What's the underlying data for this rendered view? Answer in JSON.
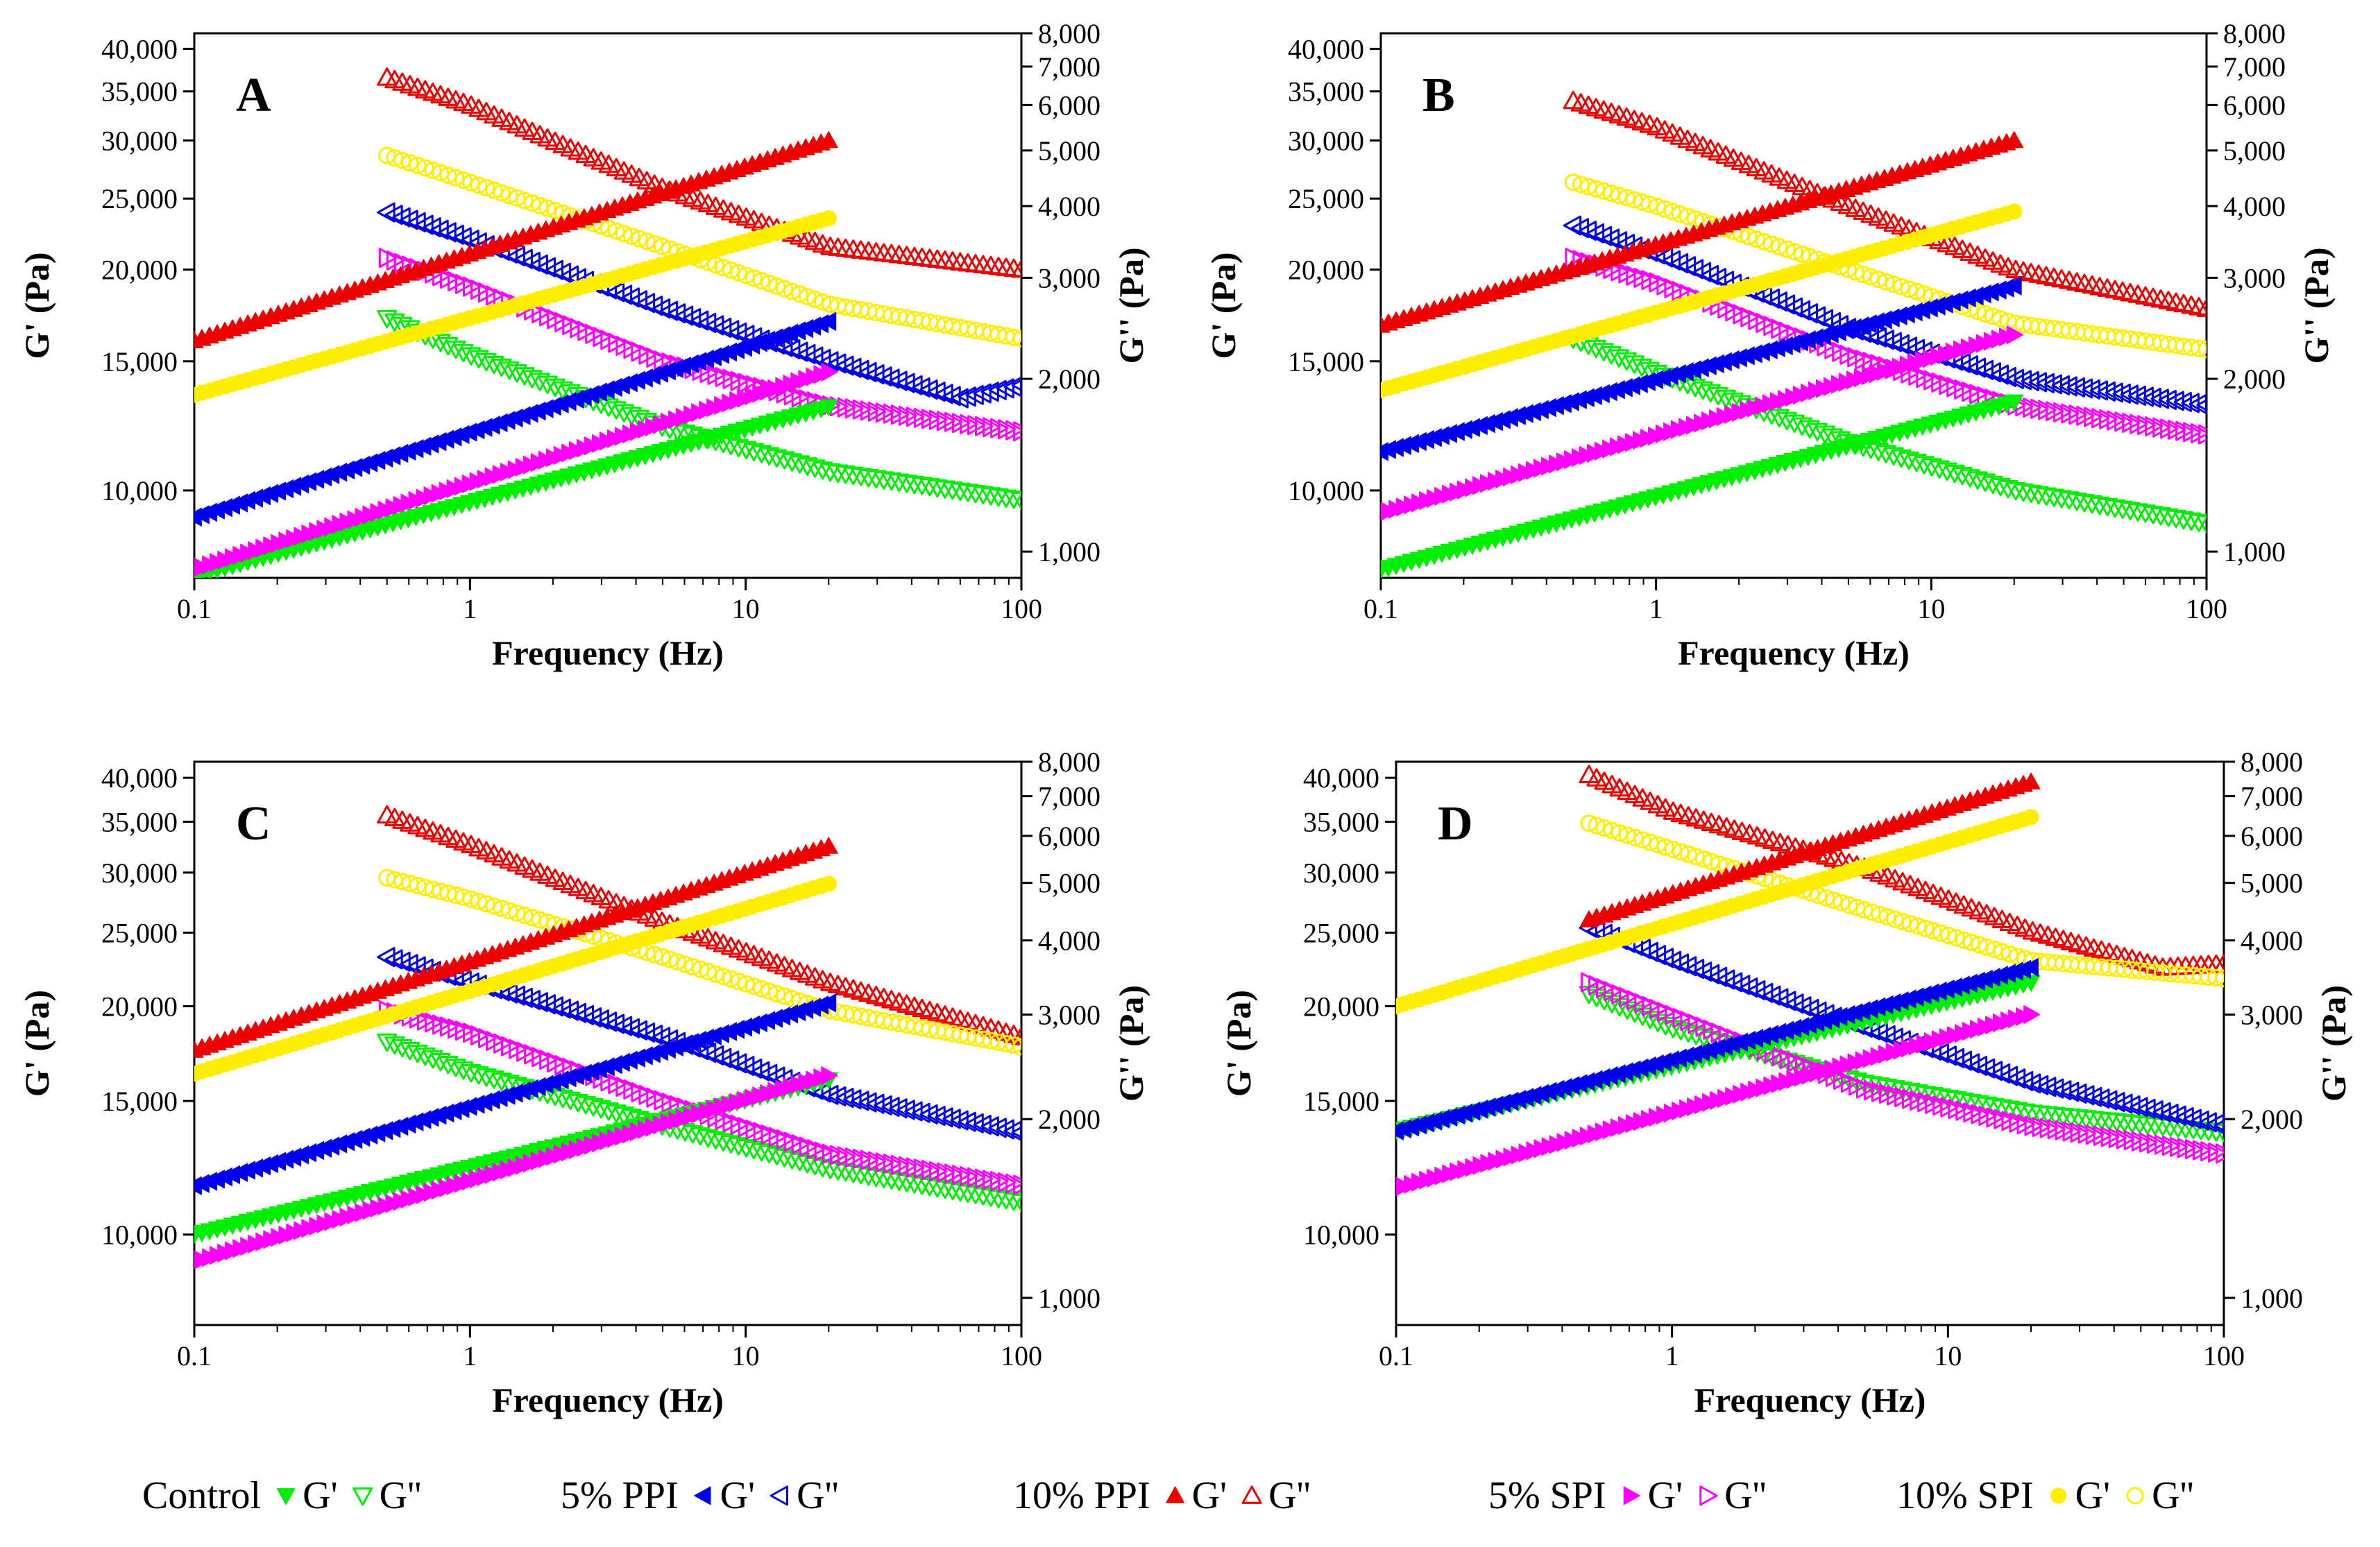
{
  "chart_data": {
    "type": "scatter",
    "x_label": "Frequency (Hz)",
    "y_left_label": "G' (Pa)",
    "y_right_label": "G'' (Pa)",
    "x_scale": "log",
    "x_range": [
      0.1,
      100
    ],
    "x_ticks": [
      {
        "value": 0.1,
        "label": "0.1"
      },
      {
        "value": 1,
        "label": "1"
      },
      {
        "value": 10,
        "label": "10"
      },
      {
        "value": 100,
        "label": "100"
      }
    ],
    "y_left_scale": "log",
    "y_left_range": [
      7600,
      42000
    ],
    "y_left_ticks": [
      {
        "value": 10000,
        "label": "10,000"
      },
      {
        "value": 15000,
        "label": "15,000"
      },
      {
        "value": 20000,
        "label": "20,000"
      },
      {
        "value": 25000,
        "label": "25,000"
      },
      {
        "value": 30000,
        "label": "30,000"
      },
      {
        "value": 35000,
        "label": "35,000"
      },
      {
        "value": 40000,
        "label": "40,000"
      }
    ],
    "y_right_scale": "log",
    "y_right_range": [
      900,
      8000
    ],
    "y_right_ticks": [
      {
        "value": 1000,
        "label": "1,000"
      },
      {
        "value": 2000,
        "label": "2,000"
      },
      {
        "value": 3000,
        "label": "3,000"
      },
      {
        "value": 4000,
        "label": "4,000"
      },
      {
        "value": 5000,
        "label": "5,000"
      },
      {
        "value": 6000,
        "label": "6,000"
      },
      {
        "value": 7000,
        "label": "7,000"
      },
      {
        "value": 8000,
        "label": "8,000"
      }
    ],
    "series_styles": [
      {
        "key": "control",
        "name": "Control",
        "color": "#00ee00",
        "gp_marker": "triangle-down-filled",
        "gpp_marker": "triangle-down-open"
      },
      {
        "key": "ppi5",
        "name": "5% PPI",
        "color": "#0000ee",
        "gp_marker": "triangle-left-filled",
        "gpp_marker": "triangle-left-open"
      },
      {
        "key": "ppi10",
        "name": "10% PPI",
        "color": "#ee0000",
        "gp_marker": "triangle-up-filled",
        "gpp_marker": "triangle-up-open"
      },
      {
        "key": "spi5",
        "name": "5% SPI",
        "color": "#ff00ff",
        "gp_marker": "triangle-right-filled",
        "gpp_marker": "triangle-right-open"
      },
      {
        "key": "spi10",
        "name": "10% SPI",
        "color": "#ffee00",
        "gp_marker": "circle-filled",
        "gpp_marker": "circle-open"
      }
    ],
    "panels": [
      {
        "label": "A",
        "series": [
          {
            "key": "control",
            "gp": {
              "f": [
                0.1,
                20
              ],
              "v": [
                7650,
                13000
              ]
            },
            "gpp": {
              "f": [
                0.5,
                1,
                5,
                20,
                100
              ],
              "v": [
                2550,
                2200,
                1650,
                1380,
                1230
              ]
            }
          },
          {
            "key": "ppi5",
            "gp": {
              "f": [
                0.1,
                20
              ],
              "v": [
                9200,
                17000
              ]
            },
            "gpp": {
              "f": [
                0.5,
                1,
                5,
                20,
                60,
                100
              ],
              "v": [
                3900,
                3500,
                2650,
                2150,
                1850,
                1950
              ]
            }
          },
          {
            "key": "ppi10",
            "gp": {
              "f": [
                0.1,
                20
              ],
              "v": [
                16000,
                30000
              ]
            },
            "gpp": {
              "f": [
                0.5,
                1,
                5,
                20,
                100
              ],
              "v": [
                6700,
                6000,
                4300,
                3400,
                3100
              ]
            }
          },
          {
            "key": "spi5",
            "gp": {
              "f": [
                0.1,
                20
              ],
              "v": [
                7800,
                14500
              ]
            },
            "gpp": {
              "f": [
                0.5,
                1,
                5,
                20,
                100
              ],
              "v": [
                3250,
                2900,
                2150,
                1800,
                1620
              ]
            }
          },
          {
            "key": "spi10",
            "gp": {
              "f": [
                0.1,
                20
              ],
              "v": [
                13500,
                23500
              ]
            },
            "gpp": {
              "f": [
                0.5,
                1,
                5,
                20,
                100
              ],
              "v": [
                4900,
                4400,
                3400,
                2700,
                2350
              ]
            }
          }
        ]
      },
      {
        "label": "B",
        "series": [
          {
            "key": "control",
            "gp": {
              "f": [
                0.1,
                20
              ],
              "v": [
                7800,
                13200
              ]
            },
            "gpp": {
              "f": [
                0.5,
                1,
                5,
                20,
                100
              ],
              "v": [
                2350,
                2050,
                1550,
                1280,
                1120
              ]
            }
          },
          {
            "key": "ppi5",
            "gp": {
              "f": [
                0.1,
                20
              ],
              "v": [
                11300,
                19000
              ]
            },
            "gpp": {
              "f": [
                0.5,
                1,
                5,
                20,
                100
              ],
              "v": [
                3700,
                3300,
                2450,
                2000,
                1800
              ]
            }
          },
          {
            "key": "ppi10",
            "gp": {
              "f": [
                0.1,
                20
              ],
              "v": [
                16800,
                30000
              ]
            },
            "gpp": {
              "f": [
                0.5,
                1,
                5,
                20,
                100
              ],
              "v": [
                6100,
                5500,
                4000,
                3100,
                2650
              ]
            }
          },
          {
            "key": "spi5",
            "gp": {
              "f": [
                0.1,
                20
              ],
              "v": [
                9300,
                16300
              ]
            },
            "gpp": {
              "f": [
                0.5,
                1,
                5,
                20,
                100
              ],
              "v": [
                3250,
                2950,
                2200,
                1800,
                1600
              ]
            }
          },
          {
            "key": "spi10",
            "gp": {
              "f": [
                0.1,
                20
              ],
              "v": [
                13700,
                24000
              ]
            },
            "gpp": {
              "f": [
                0.5,
                1,
                5,
                20,
                100
              ],
              "v": [
                4400,
                4000,
                3100,
                2500,
                2250
              ]
            }
          }
        ]
      },
      {
        "label": "C",
        "series": [
          {
            "key": "control",
            "gp": {
              "f": [
                0.1,
                20
              ],
              "v": [
                10000,
                16000
              ]
            },
            "gpp": {
              "f": [
                0.5,
                1,
                5,
                20,
                100
              ],
              "v": [
                2700,
                2400,
                1950,
                1650,
                1450
              ]
            }
          },
          {
            "key": "ppi5",
            "gp": {
              "f": [
                0.1,
                20
              ],
              "v": [
                11600,
                20200
              ]
            },
            "gpp": {
              "f": [
                0.5,
                1,
                5,
                20,
                100
              ],
              "v": [
                3750,
                3400,
                2750,
                2200,
                1900
              ]
            }
          },
          {
            "key": "ppi10",
            "gp": {
              "f": [
                0.1,
                20
              ],
              "v": [
                17500,
                32500
              ]
            },
            "gpp": {
              "f": [
                0.5,
                1,
                5,
                20,
                100
              ],
              "v": [
                6500,
                5800,
                4300,
                3400,
                2750
              ]
            }
          },
          {
            "key": "spi5",
            "gp": {
              "f": [
                0.1,
                20
              ],
              "v": [
                9200,
                16200
              ]
            },
            "gpp": {
              "f": [
                0.5,
                1,
                5,
                20,
                100
              ],
              "v": [
                3050,
                2800,
                2150,
                1750,
                1550
              ]
            }
          },
          {
            "key": "spi10",
            "gp": {
              "f": [
                0.1,
                20
              ],
              "v": [
                16300,
                29000
              ]
            },
            "gpp": {
              "f": [
                0.5,
                1,
                5,
                20,
                100
              ],
              "v": [
                5100,
                4700,
                3750,
                3050,
                2650
              ]
            }
          }
        ]
      },
      {
        "label": "D",
        "series": [
          {
            "key": "control",
            "gp": {
              "f": [
                0.1,
                20
              ],
              "v": [
                13700,
                21500
              ]
            },
            "gpp": {
              "f": [
                0.5,
                1,
                5,
                20,
                100
              ],
              "v": [
                3250,
                2850,
                2300,
                2050,
                1900
              ]
            }
          },
          {
            "key": "ppi5",
            "gp": {
              "f": [
                0.1,
                20
              ],
              "v": [
                13700,
                22500
              ]
            },
            "gpp": {
              "f": [
                0.5,
                1,
                5,
                20,
                100
              ],
              "v": [
                4200,
                3700,
                2850,
                2300,
                1950
              ]
            }
          },
          {
            "key": "ppi10",
            "gp": {
              "f": [
                0.5,
                20
              ],
              "v": [
                26000,
                39500
              ]
            },
            "gpp": {
              "f": [
                0.5,
                1,
                5,
                20,
                60,
                100
              ],
              "v": [
                7600,
                6600,
                5300,
                4150,
                3600,
                3650
              ]
            }
          },
          {
            "key": "spi5",
            "gp": {
              "f": [
                0.1,
                20
              ],
              "v": [
                11500,
                19500
              ]
            },
            "gpp": {
              "f": [
                0.5,
                1,
                5,
                20,
                100
              ],
              "v": [
                3400,
                3000,
                2250,
                1950,
                1750
              ]
            }
          },
          {
            "key": "spi10",
            "gp": {
              "f": [
                0.1,
                20
              ],
              "v": [
                20000,
                35500
              ]
            },
            "gpp": {
              "f": [
                0.5,
                1,
                5,
                20,
                100
              ],
              "v": [
                6300,
                5700,
                4500,
                3700,
                3450
              ]
            }
          }
        ]
      }
    ]
  },
  "legend": {
    "gp_label": "G'",
    "gpp_label": "G''"
  }
}
